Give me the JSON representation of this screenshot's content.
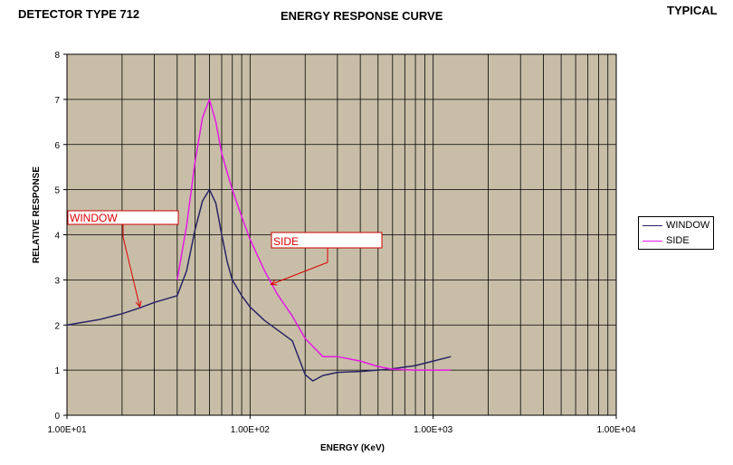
{
  "header": {
    "left": "DETECTOR TYPE 712",
    "center": "ENERGY RESPONSE CURVE",
    "right": "TYPICAL"
  },
  "chart_data": {
    "type": "line",
    "title": "ENERGY RESPONSE CURVE",
    "xlabel": "ENERGY (KeV)",
    "ylabel": "RELATIVE RESPONSE",
    "x_scale": "log",
    "xlim": [
      10,
      10000
    ],
    "ylim": [
      0,
      8
    ],
    "x_tick_labels": [
      "1.00E+01",
      "1.00E+02",
      "1.00E+03",
      "1.00E+04"
    ],
    "y_tick_labels": [
      "0",
      "1",
      "2",
      "3",
      "4",
      "5",
      "6",
      "7",
      "8"
    ],
    "grid": true,
    "plot_background": "#c8bea7",
    "legend_position": "right",
    "series": [
      {
        "name": "WINDOW",
        "color": "#2a2366",
        "points": [
          [
            10,
            2.0
          ],
          [
            15,
            2.12
          ],
          [
            20,
            2.25
          ],
          [
            25,
            2.38
          ],
          [
            30,
            2.5
          ],
          [
            35,
            2.58
          ],
          [
            40,
            2.65
          ],
          [
            45,
            3.2
          ],
          [
            50,
            4.1
          ],
          [
            55,
            4.75
          ],
          [
            60,
            5.0
          ],
          [
            65,
            4.7
          ],
          [
            70,
            4.0
          ],
          [
            75,
            3.4
          ],
          [
            80,
            3.0
          ],
          [
            90,
            2.65
          ],
          [
            100,
            2.4
          ],
          [
            120,
            2.1
          ],
          [
            140,
            1.9
          ],
          [
            170,
            1.65
          ],
          [
            200,
            0.9
          ],
          [
            220,
            0.76
          ],
          [
            250,
            0.88
          ],
          [
            300,
            0.95
          ],
          [
            400,
            0.97
          ],
          [
            500,
            1.0
          ],
          [
            600,
            1.03
          ],
          [
            800,
            1.1
          ],
          [
            1000,
            1.2
          ],
          [
            1250,
            1.3
          ]
        ]
      },
      {
        "name": "SIDE",
        "color": "#e619e6",
        "points": [
          [
            40,
            3.0
          ],
          [
            45,
            4.2
          ],
          [
            50,
            5.6
          ],
          [
            55,
            6.6
          ],
          [
            60,
            7.0
          ],
          [
            65,
            6.5
          ],
          [
            70,
            5.8
          ],
          [
            80,
            5.0
          ],
          [
            90,
            4.4
          ],
          [
            100,
            3.9
          ],
          [
            120,
            3.2
          ],
          [
            140,
            2.7
          ],
          [
            170,
            2.2
          ],
          [
            200,
            1.7
          ],
          [
            250,
            1.3
          ],
          [
            300,
            1.3
          ],
          [
            400,
            1.2
          ],
          [
            500,
            1.08
          ],
          [
            600,
            1.02
          ],
          [
            800,
            1.0
          ],
          [
            1000,
            1.0
          ],
          [
            1250,
            1.0
          ]
        ]
      }
    ],
    "annotations": [
      {
        "text": "WINDOW",
        "arrow_to": [
          25,
          2.4
        ]
      },
      {
        "text": "SIDE",
        "arrow_to": [
          130,
          2.9
        ]
      }
    ]
  }
}
